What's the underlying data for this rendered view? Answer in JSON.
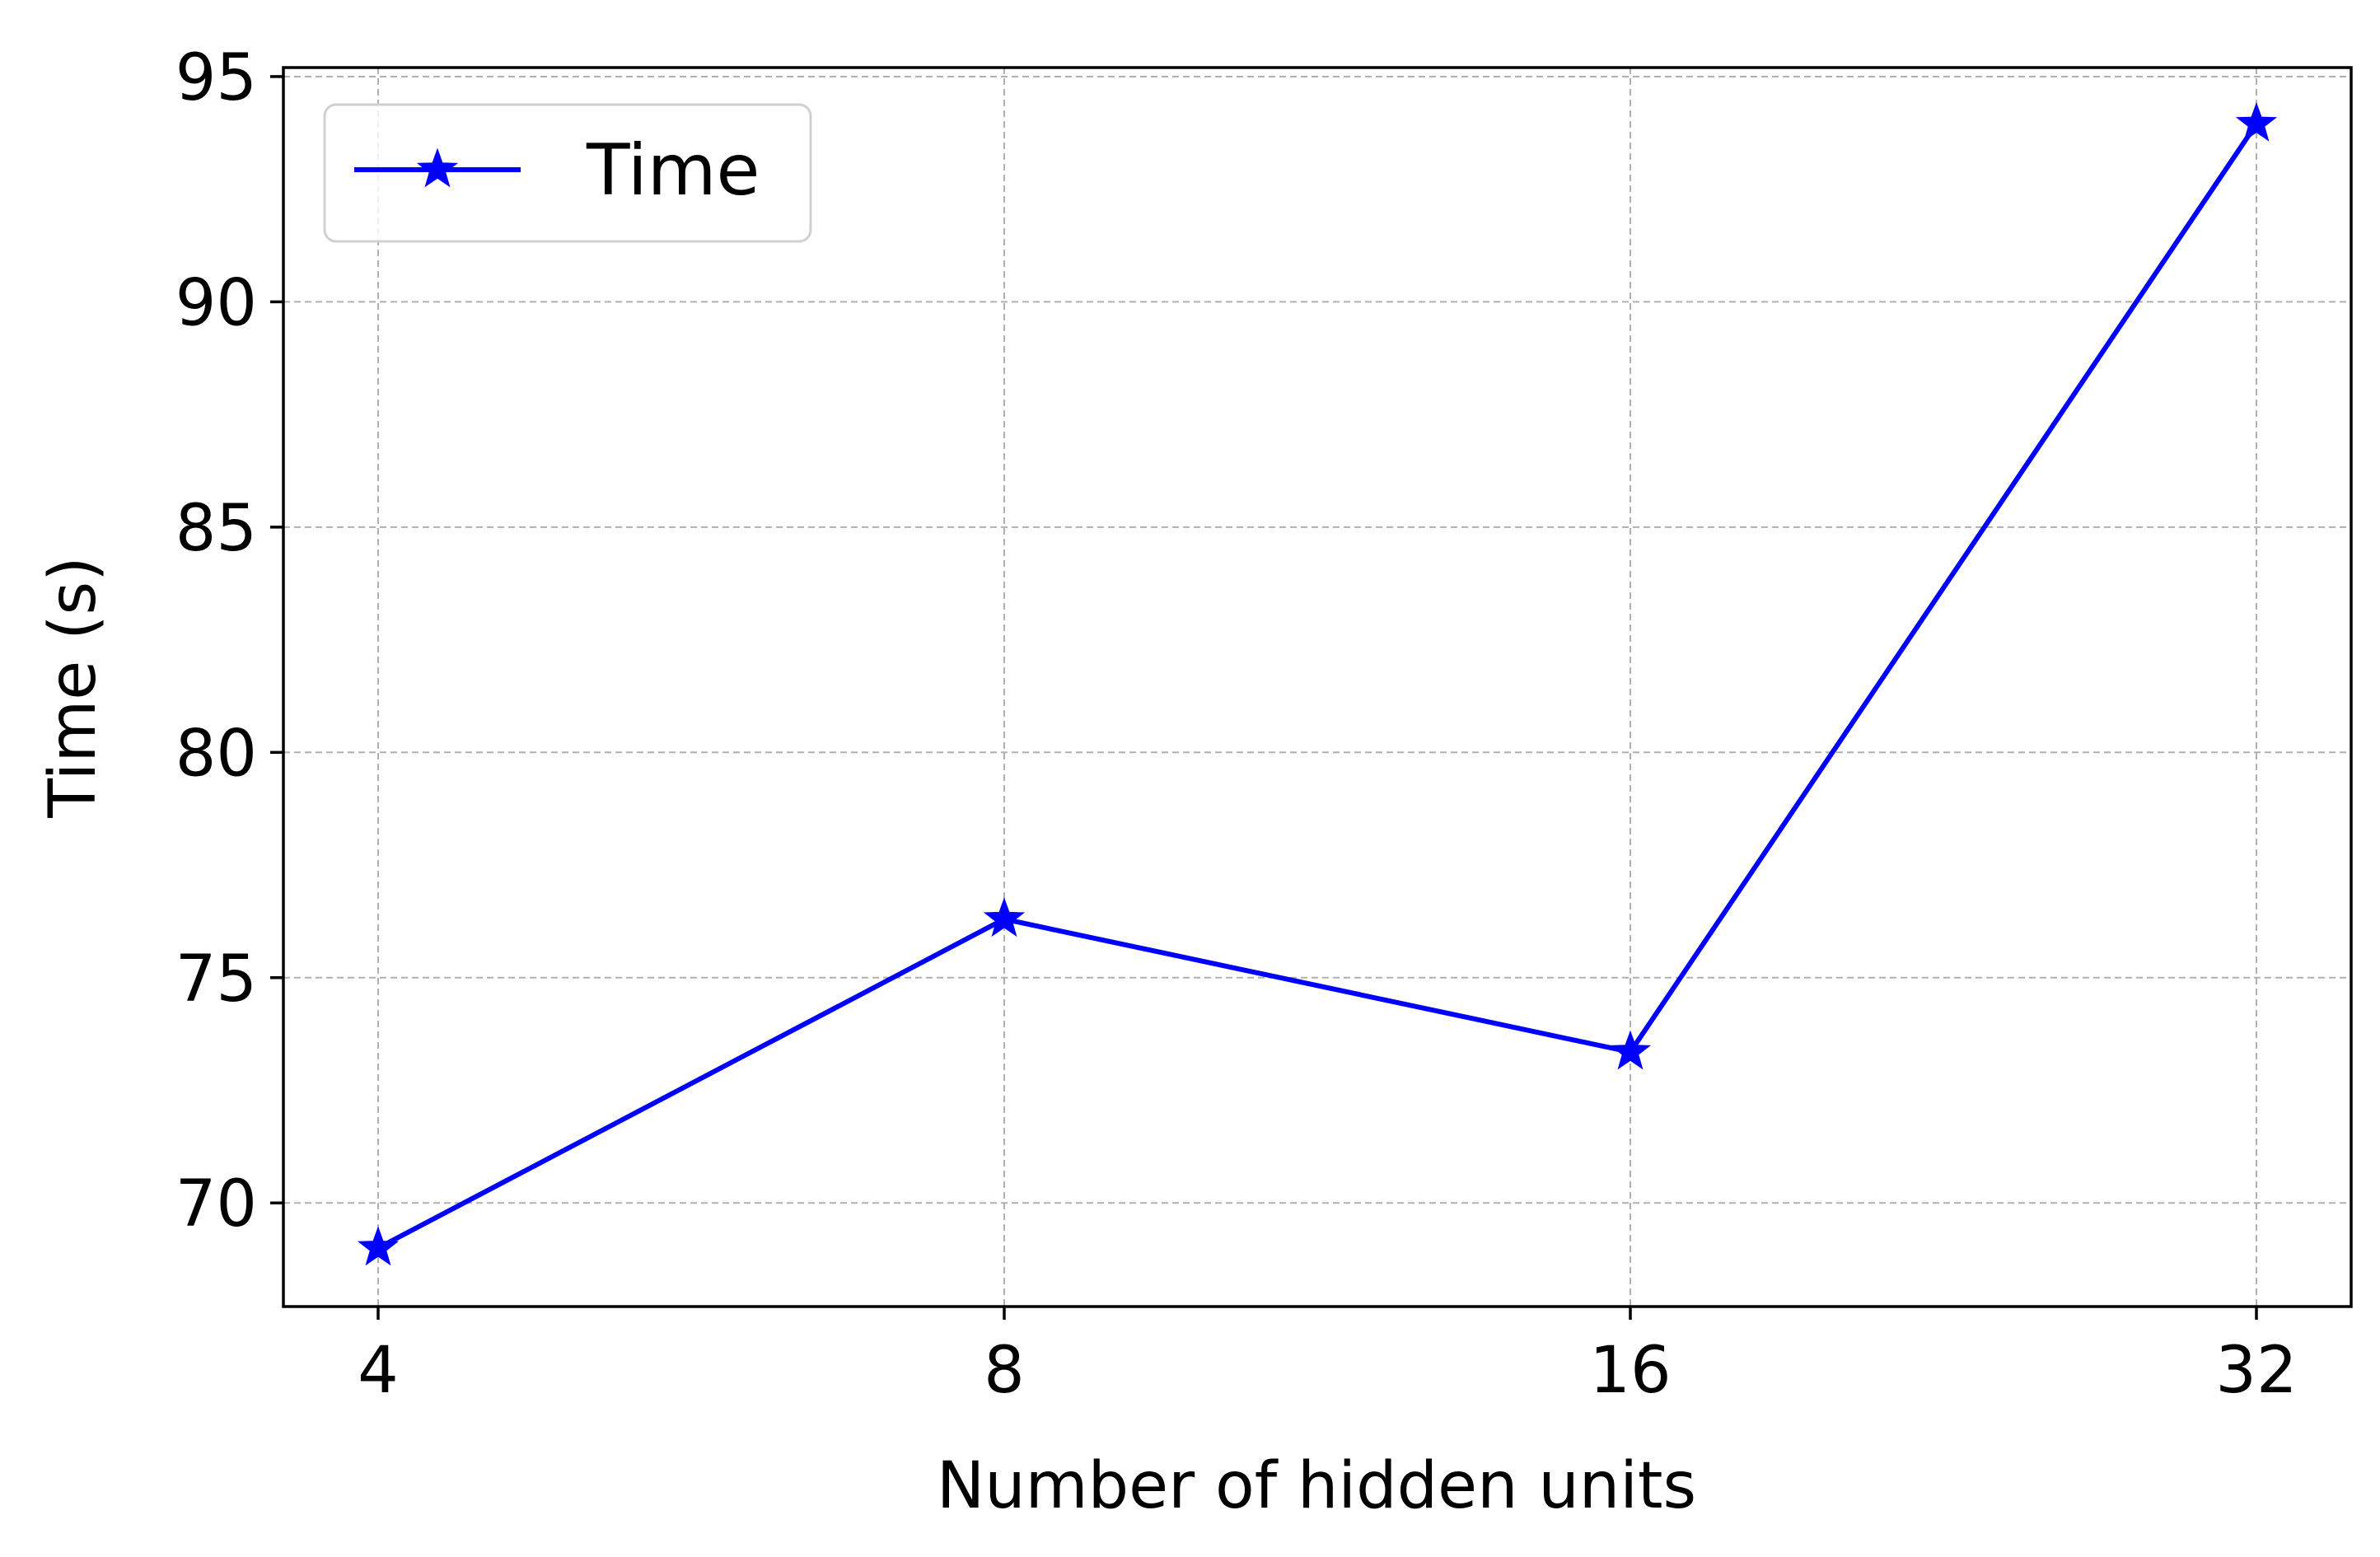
{
  "chart_data": {
    "type": "line",
    "title": "",
    "xlabel": "Number of hidden units",
    "ylabel": "Time (s)",
    "categories": [
      "4",
      "8",
      "16",
      "32"
    ],
    "ylim": [
      67.7,
      95.2
    ],
    "yticks": [
      70,
      75,
      80,
      85,
      90,
      95
    ],
    "grid": true,
    "legend": {
      "position": "top-left",
      "entries": [
        "Time"
      ]
    },
    "series": [
      {
        "name": "Time",
        "color": "#0000ff",
        "marker": "star",
        "values": [
          69.0,
          76.3,
          73.35,
          93.95
        ]
      }
    ]
  }
}
